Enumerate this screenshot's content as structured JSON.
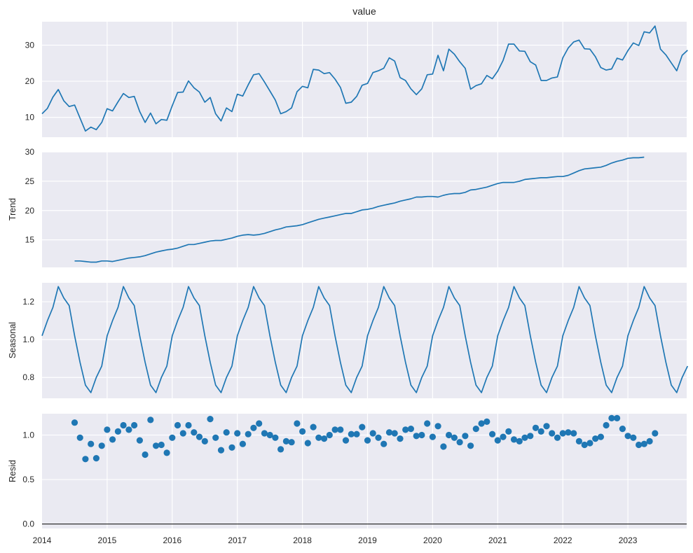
{
  "figure": {
    "title": "value",
    "bg_color": "#EAEAF2",
    "grid_color": "#FFFFFF",
    "line_color": "#1F77B4"
  },
  "chart_data": [
    {
      "type": "line",
      "panel": "value",
      "title": "value",
      "xlabel": "",
      "ylabel": "",
      "ylim": [
        4.5,
        36.5
      ],
      "yticks": [
        10,
        20,
        30
      ],
      "x_start": "2014-01",
      "frequency": "monthly",
      "values": [
        11.0,
        12.5,
        15.6,
        17.7,
        14.6,
        13.0,
        13.4,
        9.8,
        6.2,
        7.3,
        6.6,
        8.6,
        12.4,
        11.8,
        14.3,
        16.6,
        15.5,
        15.8,
        11.6,
        8.6,
        11.2,
        8.2,
        9.4,
        9.2,
        13.2,
        16.9,
        17.0,
        20.1,
        18.2,
        17.0,
        14.2,
        15.5,
        11.0,
        9.0,
        12.6,
        11.6,
        16.4,
        15.9,
        19.0,
        21.8,
        22.1,
        19.8,
        17.3,
        14.8,
        11.0,
        11.6,
        12.6,
        17.1,
        18.6,
        18.2,
        23.3,
        23.1,
        22.1,
        22.4,
        20.6,
        18.3,
        13.9,
        14.2,
        15.8,
        18.9,
        19.4,
        22.4,
        22.9,
        23.6,
        26.5,
        25.6,
        21.0,
        20.2,
        17.9,
        16.3,
        17.9,
        21.8,
        22.0,
        27.2,
        22.9,
        28.9,
        27.5,
        25.4,
        23.6,
        17.8,
        18.8,
        19.3,
        21.6,
        20.7,
        22.8,
        25.8,
        30.3,
        30.3,
        28.4,
        28.3,
        25.4,
        24.5,
        20.2,
        20.2,
        20.9,
        21.2,
        26.5,
        29.2,
        30.9,
        31.4,
        29.0,
        28.9,
        26.8,
        23.8,
        23.1,
        23.4,
        26.4,
        25.9,
        28.5,
        30.6,
        29.9,
        33.7,
        33.4,
        35.3,
        28.9,
        27.3,
        25.1,
        22.9,
        27.2,
        28.6
      ],
      "series": [
        {
          "name": "value"
        }
      ]
    },
    {
      "type": "line",
      "panel": "trend",
      "ylabel": "Trend",
      "ylim": [
        10.3,
        30
      ],
      "yticks": [
        15,
        20,
        25,
        30
      ],
      "x_start": "2014-07",
      "frequency": "monthly",
      "values": [
        11.4,
        11.4,
        11.3,
        11.2,
        11.2,
        11.4,
        11.4,
        11.3,
        11.5,
        11.7,
        11.9,
        12.0,
        12.1,
        12.3,
        12.6,
        12.9,
        13.1,
        13.3,
        13.4,
        13.6,
        13.9,
        14.2,
        14.2,
        14.4,
        14.6,
        14.8,
        14.9,
        14.9,
        15.1,
        15.3,
        15.6,
        15.8,
        15.9,
        15.8,
        15.9,
        16.1,
        16.4,
        16.7,
        16.9,
        17.2,
        17.3,
        17.4,
        17.6,
        17.9,
        18.2,
        18.5,
        18.7,
        18.9,
        19.1,
        19.3,
        19.5,
        19.5,
        19.8,
        20.1,
        20.2,
        20.4,
        20.7,
        20.9,
        21.1,
        21.3,
        21.6,
        21.8,
        22.0,
        22.3,
        22.3,
        22.4,
        22.4,
        22.3,
        22.6,
        22.8,
        22.9,
        22.9,
        23.1,
        23.5,
        23.6,
        23.8,
        24.0,
        24.3,
        24.6,
        24.8,
        24.8,
        24.8,
        25.0,
        25.3,
        25.4,
        25.5,
        25.6,
        25.6,
        25.7,
        25.8,
        25.8,
        26.0,
        26.4,
        26.8,
        27.1,
        27.2,
        27.3,
        27.4,
        27.7,
        28.1,
        28.4,
        28.6,
        28.9,
        29.0,
        29.0,
        29.1
      ]
    },
    {
      "type": "line",
      "panel": "seasonal",
      "ylabel": "Seasonal",
      "ylim": [
        0.69,
        1.3
      ],
      "yticks": [
        0.8,
        1.0,
        1.2
      ],
      "x_start": "2014-01",
      "frequency": "monthly",
      "period_pattern": [
        1.02,
        1.1,
        1.17,
        1.28,
        1.22,
        1.18,
        1.02,
        0.88,
        0.76,
        0.72,
        0.8,
        0.86
      ],
      "periods": 10
    },
    {
      "type": "scatter",
      "panel": "resid",
      "ylabel": "Resid",
      "ylim": [
        -0.05,
        1.24
      ],
      "yticks": [
        0.0,
        0.5,
        1.0
      ],
      "x_start": "2014-07",
      "frequency": "monthly",
      "baseline": 0.0,
      "values": [
        1.14,
        0.97,
        0.73,
        0.9,
        0.74,
        0.88,
        1.06,
        0.95,
        1.04,
        1.11,
        1.06,
        1.11,
        0.94,
        0.78,
        1.17,
        0.88,
        0.89,
        0.8,
        0.97,
        1.11,
        1.02,
        1.11,
        1.03,
        0.98,
        0.93,
        1.18,
        0.97,
        0.83,
        1.03,
        0.86,
        1.02,
        0.9,
        1.01,
        1.08,
        1.13,
        1.02,
        1.0,
        0.97,
        0.84,
        0.93,
        0.92,
        1.13,
        1.04,
        0.91,
        1.09,
        0.97,
        0.96,
        1.0,
        1.06,
        1.06,
        0.94,
        1.01,
        1.01,
        1.09,
        0.94,
        1.02,
        0.97,
        0.9,
        1.03,
        1.02,
        0.96,
        1.06,
        1.07,
        0.99,
        1.0,
        1.13,
        0.98,
        1.1,
        0.87,
        1.0,
        0.97,
        0.92,
        0.99,
        0.88,
        1.07,
        1.13,
        1.15,
        1.01,
        0.94,
        0.98,
        1.04,
        0.95,
        0.93,
        0.97,
        0.99,
        1.08,
        1.04,
        1.1,
        1.02,
        0.97,
        1.02,
        1.03,
        1.02,
        0.93,
        0.89,
        0.91,
        0.96,
        0.98,
        1.11,
        1.19,
        1.19,
        1.07,
        0.99,
        0.97,
        0.89,
        0.9,
        0.93,
        1.02
      ]
    }
  ],
  "xaxis": {
    "ticks": [
      "2014",
      "2015",
      "2016",
      "2017",
      "2018",
      "2019",
      "2020",
      "2021",
      "2022",
      "2023"
    ],
    "range": [
      "2014-01",
      "2023-12"
    ]
  },
  "labels": {
    "value_title": "value",
    "trend_ylabel": "Trend",
    "seasonal_ylabel": "Seasonal",
    "resid_ylabel": "Resid"
  }
}
